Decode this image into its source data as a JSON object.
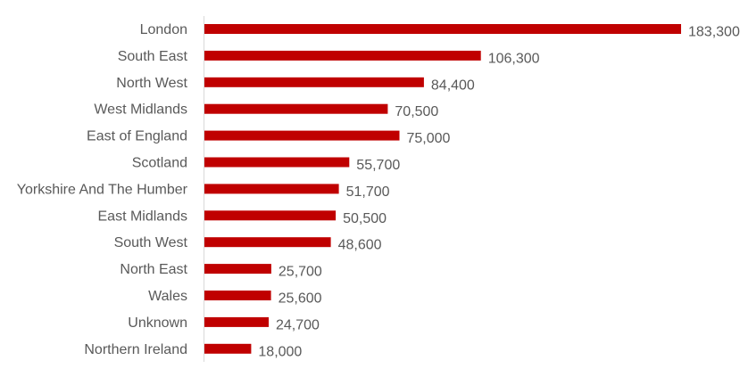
{
  "chart_data": {
    "type": "bar",
    "orientation": "horizontal",
    "categories": [
      "London",
      "South East",
      "North West",
      "West Midlands",
      "East of England",
      "Scotland",
      "Yorkshire And The Humber",
      "East Midlands",
      "South West",
      "North East",
      "Wales",
      "Unknown",
      "Northern Ireland"
    ],
    "values": [
      183300,
      106300,
      84400,
      70500,
      75000,
      55700,
      51700,
      50500,
      48600,
      25700,
      25600,
      24700,
      18000
    ],
    "value_labels": [
      "183,300",
      "106,300",
      "84,400",
      "70,500",
      "75,000",
      "55,700",
      "51,700",
      "50,500",
      "48,600",
      "25,700",
      "25,600",
      "24,700",
      "18,000"
    ],
    "xlim": [
      0,
      183300
    ],
    "bar_color": "#c00000",
    "grid": false,
    "legend": "none"
  }
}
